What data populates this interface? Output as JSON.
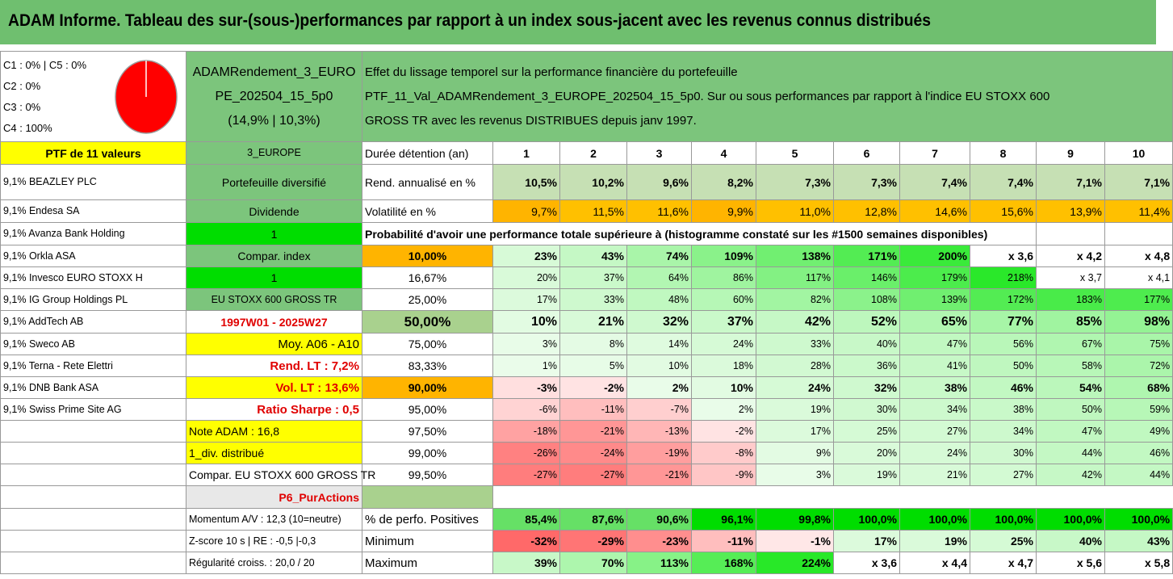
{
  "title": "ADAM Informe. Tableau des sur-(sous-)performances par rapport à un index sous-jacent avec les revenus connus distribués",
  "summary": {
    "classes": [
      "C1 : 0% | C5 : 0%",
      "C2 : 0%",
      "C3 : 0%",
      "C4 : 100%"
    ],
    "pie": {
      "C4": 100,
      "color": "#ff0000"
    },
    "portfolio_name": [
      "ADAMRendement_3_EURO",
      "PE_202504_15_5p0",
      "(14,9% | 10,3%)"
    ],
    "description": [
      "Effet du lissage temporel sur la performance financière du portefeuille",
      "PTF_11_Val_ADAMRendement_3_EUROPE_202504_15_5p0. Sur ou sous performances par rapport à l'indice EU STOXX 600",
      "GROSS TR avec les revenus DISTRIBUES depuis janv 1997."
    ]
  },
  "holdings": [
    "PTF de 11 valeurs",
    "9,1% BEAZLEY PLC",
    "9,1% Endesa SA",
    "9,1% Avanza Bank Holding",
    "9,1% Orkla ASA",
    "9,1% Invesco EURO STOXX H",
    "9,1% IG Group Holdings PL",
    "9,1% AddTech AB",
    "9,1% Sweco AB",
    "9,1% Terna - Rete Elettri",
    "9,1% DNB Bank ASA",
    "9,1% Swiss Prime Site AG"
  ],
  "info": [
    "3_EUROPE",
    "Portefeuille diversifié",
    "Dividende",
    "1",
    "Compar. index",
    "1",
    "EU STOXX 600 GROSS TR",
    "1997W01 - 2025W27",
    "Moy. A06 - A10",
    "Rend. LT : 7,2%",
    "Vol. LT : 13,6%",
    "Ratio Sharpe : 0,5",
    "Note ADAM : 16,8",
    "1_div. distribué",
    "Compar. EU STOXX 600 GROSS TR",
    "P6_PurActions",
    "Momentum A/V : 12,3 (10=neutre)",
    "Z-score 10 s | RE : -0,5 |-0,3",
    "Régularité croiss. : 20,0 / 20"
  ],
  "table": {
    "header_label": "Durée détention (an)",
    "years": [
      "1",
      "2",
      "3",
      "4",
      "5",
      "6",
      "7",
      "8",
      "9",
      "10"
    ],
    "rend_label": "Rend. annualisé en %",
    "rend": [
      "10,5%",
      "10,2%",
      "9,6%",
      "8,2%",
      "7,3%",
      "7,3%",
      "7,4%",
      "7,4%",
      "7,1%",
      "7,1%"
    ],
    "vol_label": "Volatilité en %",
    "vol": [
      "9,7%",
      "11,5%",
      "11,6%",
      "9,9%",
      "11,0%",
      "12,8%",
      "14,6%",
      "15,6%",
      "13,9%",
      "11,4%"
    ],
    "prob_title": "Probabilité d'avoir une performance totale supérieure à (histogramme constaté sur les #1500 semaines disponibles)",
    "prob_rows": [
      {
        "label": "10,00%",
        "values": [
          "23%",
          "43%",
          "74%",
          "109%",
          "138%",
          "171%",
          "200%",
          "x 3,6",
          "x 4,2",
          "x 4,8"
        ]
      },
      {
        "label": "16,67%",
        "values": [
          "20%",
          "37%",
          "64%",
          "86%",
          "117%",
          "146%",
          "179%",
          "218%",
          "x 3,7",
          "x 4,1"
        ]
      },
      {
        "label": "25,00%",
        "values": [
          "17%",
          "33%",
          "48%",
          "60%",
          "82%",
          "108%",
          "139%",
          "172%",
          "183%",
          "177%"
        ]
      },
      {
        "label": "50,00%",
        "values": [
          "10%",
          "21%",
          "32%",
          "37%",
          "42%",
          "52%",
          "65%",
          "77%",
          "85%",
          "98%"
        ]
      },
      {
        "label": "75,00%",
        "values": [
          "3%",
          "8%",
          "14%",
          "24%",
          "33%",
          "40%",
          "47%",
          "56%",
          "67%",
          "75%"
        ]
      },
      {
        "label": "83,33%",
        "values": [
          "1%",
          "5%",
          "10%",
          "18%",
          "28%",
          "36%",
          "41%",
          "50%",
          "58%",
          "72%"
        ]
      },
      {
        "label": "90,00%",
        "values": [
          "-3%",
          "-2%",
          "2%",
          "10%",
          "24%",
          "32%",
          "38%",
          "46%",
          "54%",
          "68%"
        ]
      },
      {
        "label": "95,00%",
        "values": [
          "-6%",
          "-11%",
          "-7%",
          "2%",
          "19%",
          "30%",
          "34%",
          "38%",
          "50%",
          "59%"
        ]
      },
      {
        "label": "97,50%",
        "values": [
          "-18%",
          "-21%",
          "-13%",
          "-2%",
          "17%",
          "25%",
          "27%",
          "34%",
          "47%",
          "49%"
        ]
      },
      {
        "label": "99,00%",
        "values": [
          "-26%",
          "-24%",
          "-19%",
          "-8%",
          "9%",
          "20%",
          "24%",
          "30%",
          "44%",
          "46%"
        ]
      },
      {
        "label": "99,50%",
        "values": [
          "-27%",
          "-27%",
          "-21%",
          "-9%",
          "3%",
          "19%",
          "21%",
          "27%",
          "42%",
          "44%"
        ]
      }
    ],
    "pos_label": "% de perfo. Positives",
    "pos": [
      "85,4%",
      "87,6%",
      "90,6%",
      "96,1%",
      "99,8%",
      "100,0%",
      "100,0%",
      "100,0%",
      "100,0%",
      "100,0%"
    ],
    "min_label": "Minimum",
    "min": [
      "-32%",
      "-29%",
      "-23%",
      "-11%",
      "-1%",
      "17%",
      "19%",
      "25%",
      "40%",
      "43%"
    ],
    "max_label": "Maximum",
    "max": [
      "39%",
      "70%",
      "113%",
      "168%",
      "224%",
      "x 3,6",
      "x 4,4",
      "x 4,7",
      "x 5,6",
      "x 5,8"
    ]
  },
  "colors": {
    "title_bg": "#6fbf6f",
    "highlight_yellow": "#ffff00",
    "highlight_orange": "#ffb400",
    "bright_green": "#00dd00",
    "red_text": "#e00000"
  }
}
